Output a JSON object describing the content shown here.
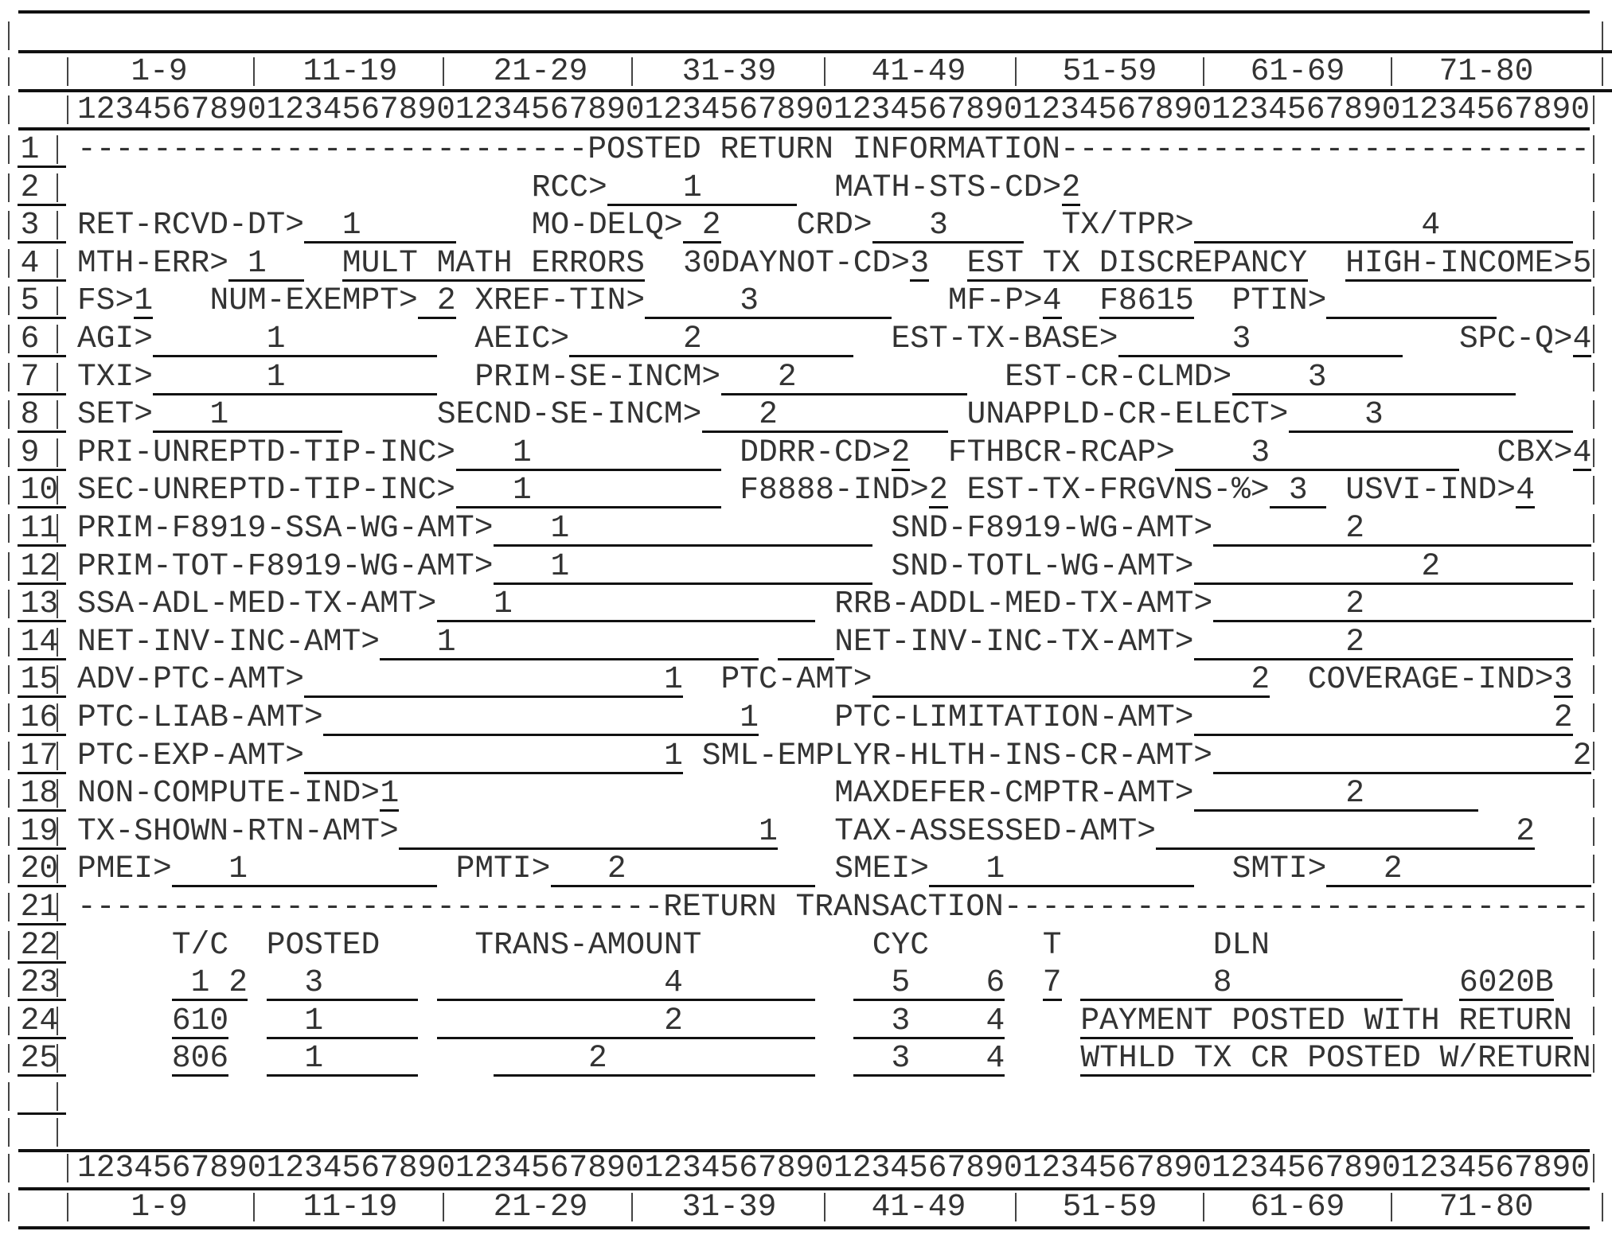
{
  "ruler": {
    "groups": [
      "1-9",
      "11-19",
      "21-29",
      "31-39",
      "41-49",
      "51-59",
      "61-69",
      "71-80"
    ],
    "digits": "12345678901234567890123456789012345678901234567890123456789012345678901234567890"
  },
  "rows": [
    {
      "num": "1",
      "items": [
        {
          "type": "label",
          "text": "---------------------------POSTED RETURN INFORMATION----------------------------"
        }
      ]
    },
    {
      "num": "2",
      "items": [
        {
          "type": "label",
          "text": "RCC>"
        },
        {
          "type": "value",
          "text": "1"
        },
        {
          "type": "label",
          "text": "MATH-STS-CD>"
        },
        {
          "type": "value",
          "text": "2"
        }
      ]
    },
    {
      "num": "3",
      "items": [
        {
          "type": "label",
          "text": "RET-RCVD-DT>"
        },
        {
          "type": "value",
          "text": "1"
        },
        {
          "type": "label",
          "text": "MO-DELQ>"
        },
        {
          "type": "value",
          "text": "2"
        },
        {
          "type": "label",
          "text": "CRD>"
        },
        {
          "type": "value",
          "text": "3"
        },
        {
          "type": "label",
          "text": "TX/TPR>"
        },
        {
          "type": "value",
          "text": "4"
        }
      ]
    },
    {
      "num": "4",
      "items": [
        {
          "type": "label",
          "text": "MTH-ERR>"
        },
        {
          "type": "value",
          "text": "1"
        },
        {
          "type": "label",
          "text": "MULT MATH ERRORS"
        },
        {
          "type": "label",
          "text": "30DAYNOT-CD>"
        },
        {
          "type": "value",
          "text": "3"
        },
        {
          "type": "label",
          "text": "EST TX DISCREPANCY"
        },
        {
          "type": "label",
          "text": "HIGH-INCOME>"
        },
        {
          "type": "value",
          "text": "5"
        }
      ]
    },
    {
      "num": "5",
      "items": [
        {
          "type": "label",
          "text": "FS>"
        },
        {
          "type": "value",
          "text": "1"
        },
        {
          "type": "label",
          "text": "NUM-EXEMPT>"
        },
        {
          "type": "value",
          "text": "2"
        },
        {
          "type": "label",
          "text": "XREF-TIN>"
        },
        {
          "type": "value",
          "text": "3"
        },
        {
          "type": "label",
          "text": "MF-P>"
        },
        {
          "type": "value",
          "text": "4"
        },
        {
          "type": "label",
          "text": "F8615"
        },
        {
          "type": "label",
          "text": "PTIN>"
        }
      ]
    },
    {
      "num": "6",
      "items": [
        {
          "type": "label",
          "text": "AGI>"
        },
        {
          "type": "value",
          "text": "1"
        },
        {
          "type": "label",
          "text": "AEIC>"
        },
        {
          "type": "value",
          "text": "2"
        },
        {
          "type": "label",
          "text": "EST-TX-BASE>"
        },
        {
          "type": "value",
          "text": "3"
        },
        {
          "type": "label",
          "text": "SPC-Q>"
        },
        {
          "type": "value",
          "text": "4"
        }
      ]
    },
    {
      "num": "7",
      "items": [
        {
          "type": "label",
          "text": "TXI>"
        },
        {
          "type": "value",
          "text": "1"
        },
        {
          "type": "label",
          "text": "PRIM-SE-INCM>"
        },
        {
          "type": "value",
          "text": "2"
        },
        {
          "type": "label",
          "text": "EST-CR-CLMD>"
        },
        {
          "type": "value",
          "text": "3"
        }
      ]
    },
    {
      "num": "8",
      "items": [
        {
          "type": "label",
          "text": "SET>"
        },
        {
          "type": "value",
          "text": "1"
        },
        {
          "type": "label",
          "text": "SECND-SE-INCM>"
        },
        {
          "type": "value",
          "text": "2"
        },
        {
          "type": "label",
          "text": "UNAPPLD-CR-ELECT>"
        },
        {
          "type": "value",
          "text": "3"
        }
      ]
    },
    {
      "num": "9",
      "items": [
        {
          "type": "label",
          "text": "PRI-UNREPTD-TIP-INC>"
        },
        {
          "type": "value",
          "text": "1"
        },
        {
          "type": "label",
          "text": "DDRR-CD>"
        },
        {
          "type": "value",
          "text": "2"
        },
        {
          "type": "label",
          "text": "FTHBCR-RCAP>"
        },
        {
          "type": "value",
          "text": "3"
        },
        {
          "type": "label",
          "text": "CBX>"
        },
        {
          "type": "value",
          "text": "4"
        }
      ]
    },
    {
      "num": "10",
      "items": [
        {
          "type": "label",
          "text": "SEC-UNREPTD-TIP-INC>"
        },
        {
          "type": "value",
          "text": "1"
        },
        {
          "type": "label",
          "text": "F8888-IND>"
        },
        {
          "type": "value",
          "text": "2"
        },
        {
          "type": "label",
          "text": "EST-TX-FRGVNS-%>"
        },
        {
          "type": "value",
          "text": "3"
        },
        {
          "type": "label",
          "text": "USVI-IND>"
        },
        {
          "type": "value",
          "text": "4"
        }
      ]
    },
    {
      "num": "11",
      "items": [
        {
          "type": "label",
          "text": "PRIM-F8919-SSA-WG-AMT>"
        },
        {
          "type": "value",
          "text": "1"
        },
        {
          "type": "label",
          "text": "SND-F8919-WG-AMT>"
        },
        {
          "type": "value",
          "text": "2"
        }
      ]
    },
    {
      "num": "12",
      "items": [
        {
          "type": "label",
          "text": "PRIM-TOT-F8919-WG-AMT>"
        },
        {
          "type": "value",
          "text": "1"
        },
        {
          "type": "label",
          "text": "SND-TOTL-WG-AMT>"
        },
        {
          "type": "value",
          "text": "2"
        }
      ]
    },
    {
      "num": "13",
      "items": [
        {
          "type": "label",
          "text": "SSA-ADL-MED-TX-AMT>"
        },
        {
          "type": "value",
          "text": "1"
        },
        {
          "type": "label",
          "text": "RRB-ADDL-MED-TX-AMT>"
        },
        {
          "type": "value",
          "text": "2"
        }
      ]
    },
    {
      "num": "14",
      "items": [
        {
          "type": "label",
          "text": "NET-INV-INC-AMT>"
        },
        {
          "type": "value",
          "text": "1"
        },
        {
          "type": "label",
          "text": "NET-INV-INC-TX-AMT>"
        },
        {
          "type": "value",
          "text": "2"
        }
      ]
    },
    {
      "num": "15",
      "items": [
        {
          "type": "label",
          "text": "ADV-PTC-AMT>"
        },
        {
          "type": "value",
          "text": "1"
        },
        {
          "type": "label",
          "text": "PTC-AMT>"
        },
        {
          "type": "value",
          "text": "2"
        },
        {
          "type": "label",
          "text": "COVERAGE-IND>"
        },
        {
          "type": "value",
          "text": "3"
        }
      ]
    },
    {
      "num": "16",
      "items": [
        {
          "type": "label",
          "text": "PTC-LIAB-AMT>"
        },
        {
          "type": "value",
          "text": "1"
        },
        {
          "type": "label",
          "text": "PTC-LIMITATION-AMT>"
        },
        {
          "type": "value",
          "text": "2"
        }
      ]
    },
    {
      "num": "17",
      "items": [
        {
          "type": "label",
          "text": "PTC-EXP-AMT>"
        },
        {
          "type": "value",
          "text": "1"
        },
        {
          "type": "label",
          "text": "SML-EMPLYR-HLTH-INS-CR-AMT>"
        },
        {
          "type": "value",
          "text": "2"
        }
      ]
    },
    {
      "num": "18",
      "items": [
        {
          "type": "label",
          "text": "NON-COMPUTE-IND>"
        },
        {
          "type": "value",
          "text": "1"
        },
        {
          "type": "label",
          "text": "MAXDEFER-CMPTR-AMT>"
        },
        {
          "type": "value",
          "text": "2"
        }
      ]
    },
    {
      "num": "19",
      "items": [
        {
          "type": "label",
          "text": "TX-SHOWN-RTN-AMT>"
        },
        {
          "type": "value",
          "text": "1"
        },
        {
          "type": "label",
          "text": "TAX-ASSESSED-AMT>"
        },
        {
          "type": "value",
          "text": "2"
        }
      ]
    },
    {
      "num": "20",
      "items": [
        {
          "type": "label",
          "text": "PMEI>"
        },
        {
          "type": "value",
          "text": "1"
        },
        {
          "type": "label",
          "text": "PMTI>"
        },
        {
          "type": "value",
          "text": "2"
        },
        {
          "type": "label",
          "text": "SMEI>"
        },
        {
          "type": "value",
          "text": "1"
        },
        {
          "type": "label",
          "text": "SMTI>"
        },
        {
          "type": "value",
          "text": "2"
        }
      ]
    },
    {
      "num": "21",
      "items": [
        {
          "type": "label",
          "text": "-------------------------------RETURN TRANSACTION-------------------------------"
        }
      ]
    },
    {
      "num": "22",
      "items": [
        {
          "type": "label",
          "text": "T/C"
        },
        {
          "type": "label",
          "text": "POSTED"
        },
        {
          "type": "label",
          "text": "TRANS-AMOUNT"
        },
        {
          "type": "label",
          "text": "CYC"
        },
        {
          "type": "label",
          "text": "T"
        },
        {
          "type": "label",
          "text": "DLN"
        }
      ]
    },
    {
      "num": "23",
      "items": [
        {
          "type": "value",
          "text": "1"
        },
        {
          "type": "value",
          "text": "2"
        },
        {
          "type": "value",
          "text": "3"
        },
        {
          "type": "value",
          "text": "4"
        },
        {
          "type": "value",
          "text": "5"
        },
        {
          "type": "value",
          "text": "6"
        },
        {
          "type": "value",
          "text": "7"
        },
        {
          "type": "value",
          "text": "8"
        },
        {
          "type": "value",
          "text": "6020B"
        }
      ]
    },
    {
      "num": "24",
      "items": [
        {
          "type": "value",
          "text": "610"
        },
        {
          "type": "value",
          "text": "1"
        },
        {
          "type": "value",
          "text": "2"
        },
        {
          "type": "value",
          "text": "3"
        },
        {
          "type": "value",
          "text": "4"
        },
        {
          "type": "value",
          "text": "PAYMENT POSTED WITH RETURN"
        }
      ]
    },
    {
      "num": "25",
      "items": [
        {
          "type": "value",
          "text": "806"
        },
        {
          "type": "value",
          "text": "1"
        },
        {
          "type": "value",
          "text": "2"
        },
        {
          "type": "value",
          "text": "3"
        },
        {
          "type": "value",
          "text": "4"
        },
        {
          "type": "value",
          "text": "WTHLD TX CR POSTED W/RETURN"
        }
      ]
    },
    {
      "num": "",
      "items": []
    }
  ]
}
